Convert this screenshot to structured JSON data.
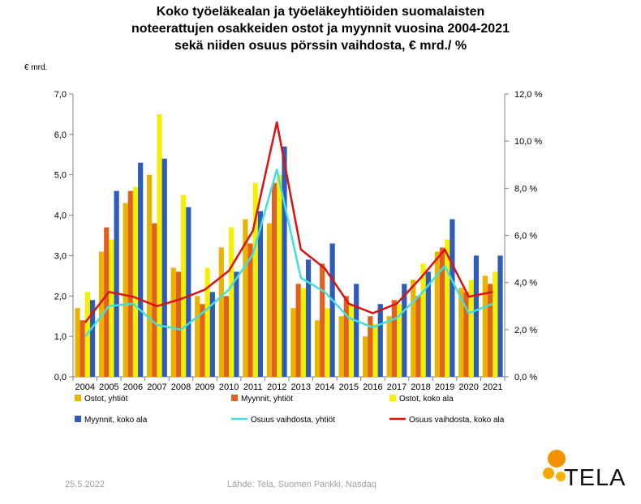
{
  "title_lines": [
    "Koko työeläkealan ja työeläkeyhtiöiden suomalaisten",
    "noteerattujen osakkeiden ostot ja myynnit vuosina 2004-2021",
    "sekä niiden osuus pörssin vaihdosta, € mrd./ %"
  ],
  "footer": {
    "date": "25.5.2022",
    "source": "Lähde: Tela, Suomen Pankki, Nasdaq"
  },
  "logo": {
    "text": "TELA",
    "colors": {
      "orange": "#f39200",
      "yellow": "#f8b200"
    }
  },
  "chart_data": {
    "type": "bar",
    "title": "",
    "ylabel": "€ mrd.",
    "y2label": "",
    "categories": [
      "2004",
      "2005",
      "2006",
      "2007",
      "2008",
      "2009",
      "2010",
      "2011",
      "2012",
      "2013",
      "2014",
      "2015",
      "2016",
      "2017",
      "2018",
      "2019",
      "2020",
      "2021"
    ],
    "ylim": [
      0,
      7
    ],
    "y_ticks": [
      "0,0",
      "1,0",
      "2,0",
      "3,0",
      "4,0",
      "5,0",
      "6,0",
      "7,0"
    ],
    "y2lim": [
      0,
      12
    ],
    "y2_ticks": [
      "0,0 %",
      "2,0 %",
      "4,0 %",
      "6,0 %",
      "8,0 %",
      "10,0 %",
      "12,0 %"
    ],
    "grid": false,
    "legend_position": "bottom",
    "bar_series": [
      {
        "name": "Ostot, yhtiöt",
        "color": "#e8b400",
        "values": [
          1.7,
          3.1,
          4.3,
          5.0,
          2.7,
          2.0,
          3.2,
          3.9,
          3.8,
          1.7,
          1.4,
          1.5,
          1.0,
          1.5,
          2.4,
          3.1,
          2.2,
          2.5
        ]
      },
      {
        "name": "Myynnit, yhtiöt",
        "color": "#e06020",
        "values": [
          1.4,
          3.7,
          4.6,
          3.8,
          2.6,
          1.8,
          2.0,
          3.3,
          4.8,
          2.3,
          2.8,
          2.0,
          1.5,
          1.9,
          2.0,
          3.2,
          2.1,
          2.3
        ]
      },
      {
        "name": "Ostot, koko ala",
        "color": "#f4f000",
        "values": [
          2.1,
          3.4,
          4.7,
          6.5,
          4.5,
          2.7,
          3.7,
          4.8,
          5.0,
          2.2,
          1.7,
          1.8,
          1.3,
          1.8,
          2.8,
          3.4,
          2.4,
          2.6
        ]
      },
      {
        "name": "Myynnit, koko ala",
        "color": "#2e5cb8",
        "values": [
          1.9,
          4.6,
          5.3,
          5.4,
          4.2,
          2.1,
          2.6,
          4.1,
          5.7,
          2.9,
          3.3,
          2.3,
          1.8,
          2.3,
          2.6,
          3.9,
          3.0,
          3.0
        ]
      }
    ],
    "line_series": [
      {
        "name": "Osuus vaihdosta, yhtiöt",
        "color": "#40e0e0",
        "axis": "right",
        "values": [
          1.7,
          3.0,
          3.1,
          2.2,
          2.0,
          2.8,
          3.7,
          5.2,
          8.8,
          4.2,
          3.6,
          2.5,
          2.1,
          2.5,
          3.5,
          4.7,
          2.7,
          3.1
        ]
      },
      {
        "name": "Osuus vaihdosta, koko ala",
        "color": "#e01010",
        "axis": "right",
        "values": [
          2.3,
          3.6,
          3.4,
          3.0,
          3.3,
          3.7,
          4.5,
          6.2,
          10.8,
          5.4,
          4.6,
          3.1,
          2.7,
          3.1,
          4.2,
          5.4,
          3.4,
          3.6
        ]
      }
    ]
  }
}
